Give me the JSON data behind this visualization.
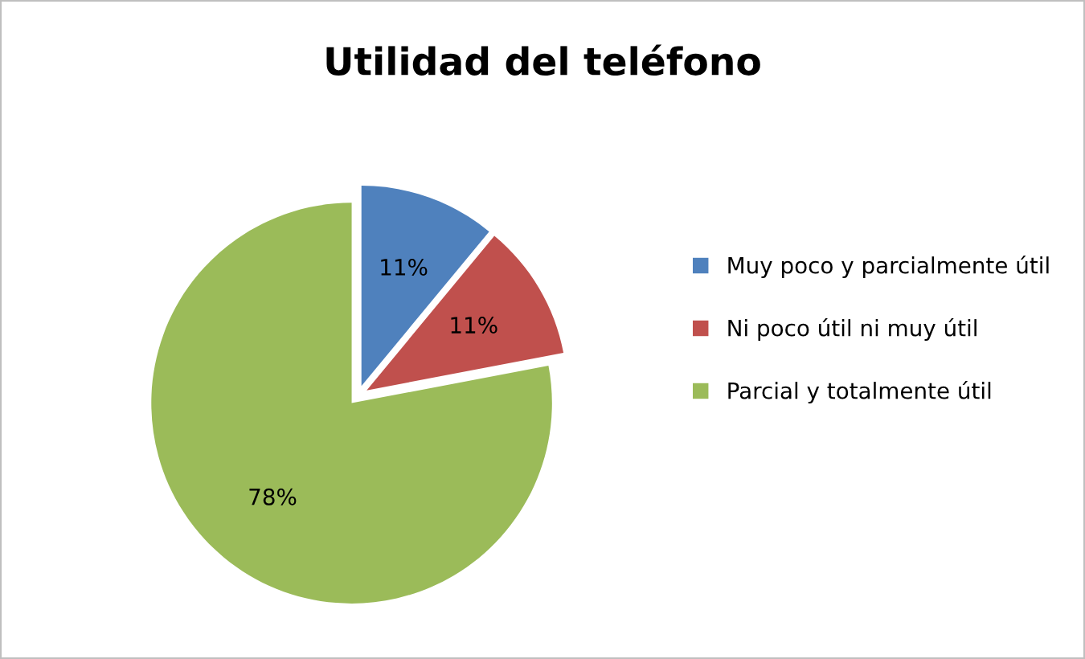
{
  "chart_data": {
    "type": "pie",
    "title": "Utilidad del teléfono",
    "categories": [
      "Muy poco y parcialmente útil",
      "Ni poco útil ni muy útil",
      "Parcial y totalmente útil"
    ],
    "values": [
      11,
      11,
      78
    ],
    "value_labels": [
      "11%",
      "11%",
      "78%"
    ],
    "colors": [
      "#4f81bd",
      "#c0504d",
      "#9bbb59"
    ],
    "legend": "right"
  }
}
